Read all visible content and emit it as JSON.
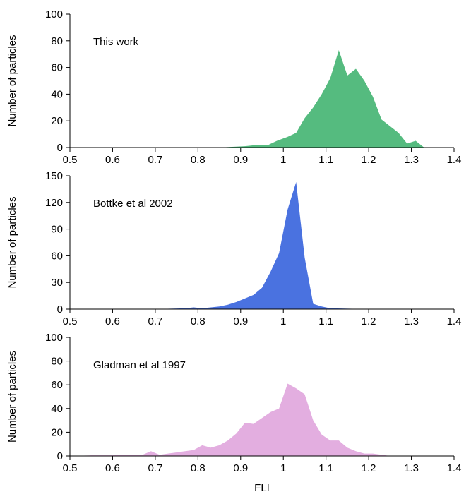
{
  "chart_data": [
    {
      "type": "area",
      "title": "This work",
      "ylabel": "Number of particles",
      "xlabel": "",
      "xlim": [
        0.5,
        1.4
      ],
      "ylim": [
        0,
        100
      ],
      "xticks": [
        "0.5",
        "0.6",
        "0.7",
        "0.8",
        "0.9",
        "1",
        "1.1",
        "1.2",
        "1.3",
        "1.4"
      ],
      "yticks": [
        "0",
        "20",
        "40",
        "60",
        "80",
        "100"
      ],
      "grid": false,
      "color": "#55bb7f",
      "series": [
        {
          "x": [
            0.5,
            0.85,
            0.88,
            0.91,
            0.94,
            0.965,
            0.985,
            1.01,
            1.03,
            1.05,
            1.07,
            1.09,
            1.11,
            1.13,
            1.15,
            1.17,
            1.19,
            1.21,
            1.23,
            1.25,
            1.27,
            1.29,
            1.31,
            1.33
          ],
          "values": [
            0,
            0,
            0.5,
            1,
            2,
            2,
            5,
            8,
            11,
            22,
            30,
            40,
            52,
            73,
            54,
            59,
            50,
            38,
            21,
            16,
            11,
            3,
            5,
            0
          ]
        }
      ]
    },
    {
      "type": "area",
      "title": "Bottke et al 2002",
      "ylabel": "Number of particles",
      "xlabel": "",
      "xlim": [
        0.5,
        1.4
      ],
      "ylim": [
        0,
        150
      ],
      "xticks": [
        "0.5",
        "0.6",
        "0.7",
        "0.8",
        "0.9",
        "1",
        "1.1",
        "1.2",
        "1.3",
        "1.4"
      ],
      "yticks": [
        "0",
        "30",
        "60",
        "90",
        "120",
        "150"
      ],
      "grid": false,
      "color": "#4a72e0",
      "series": [
        {
          "x": [
            0.5,
            0.7,
            0.77,
            0.79,
            0.81,
            0.83,
            0.85,
            0.87,
            0.89,
            0.91,
            0.93,
            0.95,
            0.97,
            0.99,
            1.01,
            1.03,
            1.05,
            1.07,
            1.09,
            1.11,
            1.2
          ],
          "values": [
            0,
            0,
            1,
            2,
            1,
            2,
            3,
            5,
            8,
            12,
            16,
            24,
            42,
            63,
            112,
            143,
            58,
            6,
            3,
            1,
            0
          ]
        }
      ]
    },
    {
      "type": "area",
      "title": "Gladman et al 1997",
      "ylabel": "Number of particles",
      "xlabel": "FLI",
      "xlim": [
        0.5,
        1.4
      ],
      "ylim": [
        0,
        100
      ],
      "xticks": [
        "0.5",
        "0.6",
        "0.7",
        "0.8",
        "0.9",
        "1",
        "1.1",
        "1.2",
        "1.3",
        "1.4"
      ],
      "yticks": [
        "0",
        "20",
        "40",
        "60",
        "80",
        "100"
      ],
      "grid": false,
      "color": "#e3aee0",
      "series": [
        {
          "x": [
            0.5,
            0.55,
            0.6,
            0.65,
            0.67,
            0.69,
            0.71,
            0.73,
            0.75,
            0.77,
            0.79,
            0.81,
            0.83,
            0.85,
            0.87,
            0.89,
            0.91,
            0.93,
            0.95,
            0.97,
            0.99,
            1.01,
            1.03,
            1.05,
            1.07,
            1.09,
            1.11,
            1.13,
            1.15,
            1.17,
            1.19,
            1.21,
            1.25
          ],
          "values": [
            0,
            0.5,
            0.5,
            1,
            1,
            4,
            1,
            2,
            3,
            4,
            5,
            9,
            7,
            9,
            13,
            19,
            28,
            27,
            32,
            37,
            40,
            61,
            57,
            52,
            30,
            18,
            13,
            13,
            7,
            4,
            2,
            2,
            0
          ]
        }
      ]
    }
  ]
}
